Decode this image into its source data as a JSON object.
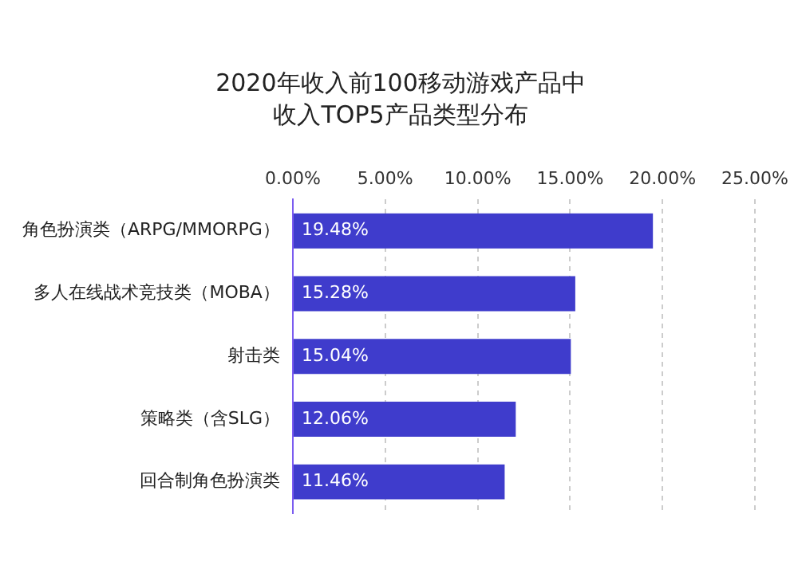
{
  "chart_data": {
    "type": "bar",
    "orientation": "horizontal",
    "title": "2020年收入前100移动游戏产品中收入TOP5产品类型分布",
    "categories": [
      "角色扮演类（ARPG/MMORPG）",
      "多人在线战术竞技类（MOBA）",
      "射击类",
      "策略类（含SLG）",
      "回合制角色扮演类"
    ],
    "values": [
      19.48,
      15.28,
      15.04,
      12.06,
      11.46
    ],
    "color": "#3f3ccc",
    "xlim": [
      0,
      25
    ],
    "xticks": [
      {
        "value": 0,
        "label": "0.00%"
      },
      {
        "value": 5,
        "label": "5.00%"
      },
      {
        "value": 10,
        "label": "10.00%"
      },
      {
        "value": 15,
        "label": "15.00%"
      },
      {
        "value": 20,
        "label": "20.00%"
      },
      {
        "value": 25,
        "label": "25.00%"
      }
    ],
    "value_labels": [
      "19.48%",
      "15.28%",
      "15.04%",
      "12.06%",
      "11.46%"
    ],
    "grid": "x"
  }
}
